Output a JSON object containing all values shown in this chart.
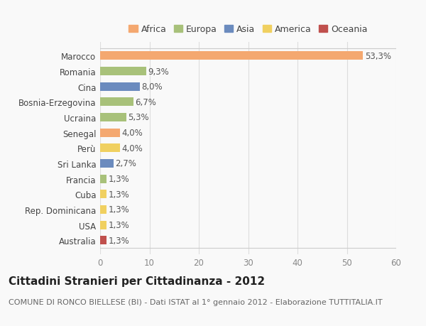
{
  "categories": [
    "Marocco",
    "Romania",
    "Cina",
    "Bosnia-Erzegovina",
    "Ucraina",
    "Senegal",
    "Perù",
    "Sri Lanka",
    "Francia",
    "Cuba",
    "Rep. Dominicana",
    "USA",
    "Australia"
  ],
  "values": [
    53.3,
    9.3,
    8.0,
    6.7,
    5.3,
    4.0,
    4.0,
    2.7,
    1.3,
    1.3,
    1.3,
    1.3,
    1.3
  ],
  "labels": [
    "53,3%",
    "9,3%",
    "8,0%",
    "6,7%",
    "5,3%",
    "4,0%",
    "4,0%",
    "2,7%",
    "1,3%",
    "1,3%",
    "1,3%",
    "1,3%",
    "1,3%"
  ],
  "colors": [
    "#F4A870",
    "#A8C17A",
    "#6B8BBE",
    "#A8C17A",
    "#A8C17A",
    "#F4A870",
    "#F0D060",
    "#6B8BBE",
    "#A8C17A",
    "#F0D060",
    "#F0D060",
    "#F0D060",
    "#C0504D"
  ],
  "legend_items": [
    {
      "label": "Africa",
      "color": "#F4A870"
    },
    {
      "label": "Europa",
      "color": "#A8C17A"
    },
    {
      "label": "Asia",
      "color": "#6B8BBE"
    },
    {
      "label": "America",
      "color": "#F0D060"
    },
    {
      "label": "Oceania",
      "color": "#C0504D"
    }
  ],
  "xlim": [
    0,
    60
  ],
  "xticks": [
    0,
    10,
    20,
    30,
    40,
    50,
    60
  ],
  "title": "Cittadini Stranieri per Cittadinanza - 2012",
  "subtitle": "COMUNE DI RONCO BIELLESE (BI) - Dati ISTAT al 1° gennaio 2012 - Elaborazione TUTTITALIA.IT",
  "background_color": "#f9f9f9",
  "bar_height": 0.55,
  "title_fontsize": 11,
  "subtitle_fontsize": 8,
  "label_fontsize": 8.5,
  "tick_fontsize": 8.5,
  "legend_fontsize": 9
}
